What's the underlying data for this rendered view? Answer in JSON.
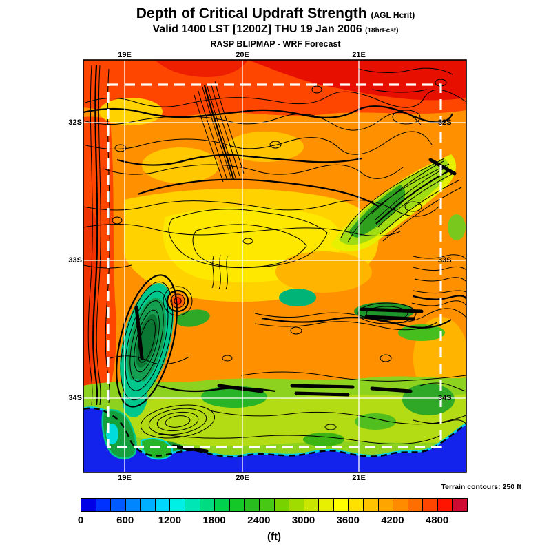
{
  "header": {
    "title": "Depth of Critical Updraft Strength",
    "title_suffix": "(AGL Hcrit)",
    "subtitle": "Valid 1400 LST [1200Z] THU 19 Jan 2006",
    "subtitle_suffix": "(18hrFcst)",
    "model_line": "RASP BLIPMAP - WRF Forecast"
  },
  "map": {
    "x_ticks_top": [
      "19E",
      "20E",
      "21E"
    ],
    "x_ticks_bottom": [
      "19E",
      "20E",
      "21E"
    ],
    "y_ticks_left": [
      "32S",
      "33S",
      "34S"
    ],
    "y_ticks_right": [
      "32S",
      "33S",
      "34S"
    ],
    "terrain_note": "Terrain contours: 250 ft",
    "grid_color": "#ffffff",
    "domain_box_style": "white-dashed"
  },
  "colorbar": {
    "unit_label": "(ft)",
    "tick_labels": [
      "0",
      "600",
      "1200",
      "1800",
      "2400",
      "3000",
      "3600",
      "4200",
      "4800"
    ],
    "min": 0,
    "max": 5200,
    "step": 200,
    "colors": [
      "#0000E6",
      "#0032FF",
      "#005AFF",
      "#0087FF",
      "#00AFFF",
      "#00D7FF",
      "#00F0E6",
      "#00E6B4",
      "#00DC82",
      "#00D250",
      "#14C828",
      "#28BE1E",
      "#46C814",
      "#78D200",
      "#A0DC00",
      "#C8E600",
      "#E6F000",
      "#FFFF00",
      "#FFE100",
      "#FFC300",
      "#FFA500",
      "#FF8C00",
      "#FF6E00",
      "#FF4600",
      "#FF1400",
      "#CD0A32"
    ]
  }
}
